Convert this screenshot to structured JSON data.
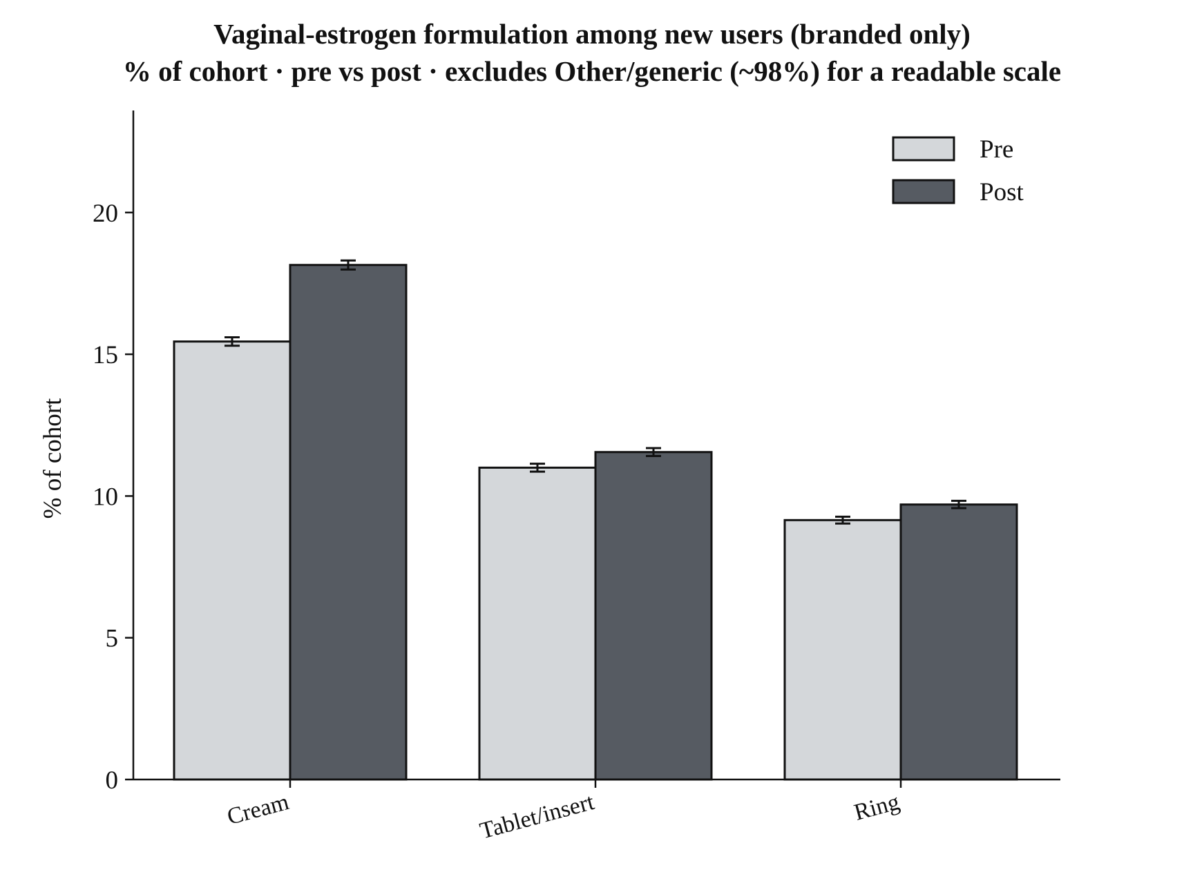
{
  "chart_data": {
    "type": "bar",
    "title": "Vaginal-estrogen formulation among new users (branded only)",
    "subtitle": "% of cohort · pre vs post · excludes Other/generic (~98%) for a readable scale",
    "xlabel": "",
    "ylabel": "% of cohort",
    "ylim": [
      0,
      23.6
    ],
    "yticks": [
      0,
      5,
      10,
      15,
      20
    ],
    "ytick_labels": [
      "0",
      "5",
      "10",
      "15",
      "20"
    ],
    "categories": [
      "Cream",
      "Tablet/insert",
      "Ring"
    ],
    "series": [
      {
        "name": "Pre",
        "values": [
          15.45,
          11.0,
          9.15
        ],
        "error": [
          0.15,
          0.14,
          0.12
        ],
        "color": "#d4d7da"
      },
      {
        "name": "Post",
        "values": [
          18.15,
          11.55,
          9.7
        ],
        "error": [
          0.16,
          0.14,
          0.13
        ],
        "color": "#565b62"
      }
    ],
    "legend_position": "top-right",
    "grid": false,
    "edge_color": "#111111"
  }
}
